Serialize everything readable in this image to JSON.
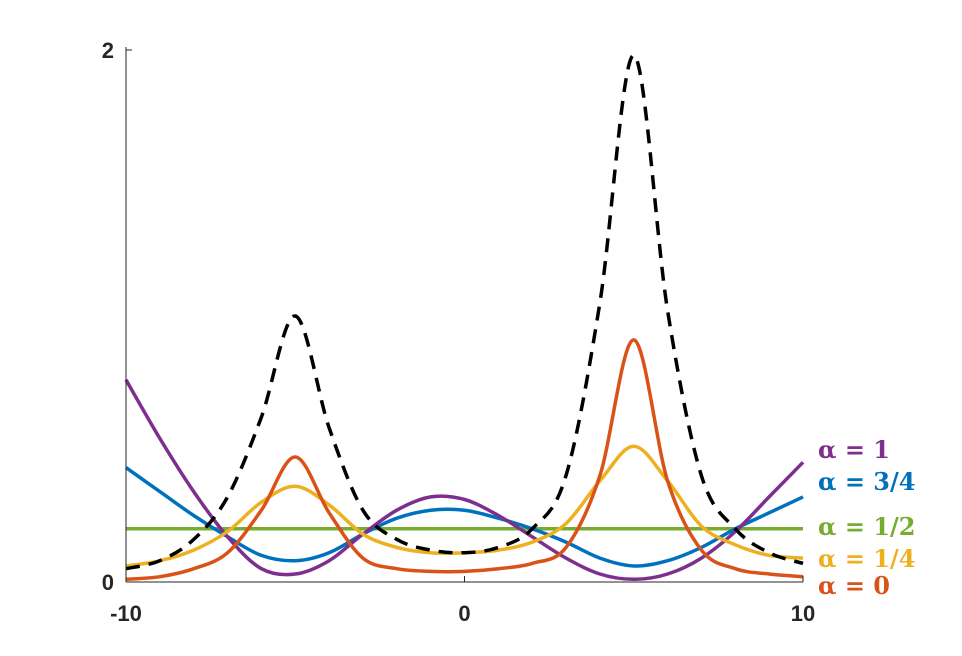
{
  "chart_data": {
    "type": "line",
    "title": "",
    "xlabel": "",
    "ylabel": "",
    "xlim": [
      -10,
      10
    ],
    "ylim": [
      0,
      2
    ],
    "grid": false,
    "legend": "right, inline labels at line ends",
    "x_ticks": [
      "-10",
      "0",
      "10"
    ],
    "y_ticks": [
      "0",
      "2"
    ],
    "x": [
      -10,
      -9,
      -8,
      -7,
      -6,
      -5,
      -4,
      -3,
      -2,
      -1,
      0,
      1,
      2,
      3,
      4,
      5,
      6,
      7,
      8,
      9,
      10
    ],
    "series": [
      {
        "key": "dashed",
        "name": "",
        "color": "#000000",
        "dashed": true,
        "values": [
          0.05,
          0.08,
          0.16,
          0.32,
          0.62,
          1.0,
          0.58,
          0.27,
          0.16,
          0.12,
          0.11,
          0.13,
          0.2,
          0.4,
          1.05,
          1.98,
          1.02,
          0.4,
          0.2,
          0.11,
          0.07
        ]
      },
      {
        "key": "alpha-1",
        "name": "α = 1",
        "color": "#7E2F8E",
        "dashed": false,
        "values": [
          0.76,
          0.54,
          0.34,
          0.17,
          0.05,
          0.03,
          0.08,
          0.18,
          0.27,
          0.32,
          0.31,
          0.25,
          0.17,
          0.09,
          0.03,
          0.01,
          0.03,
          0.09,
          0.19,
          0.32,
          0.45
        ]
      },
      {
        "key": "alpha-3-4",
        "name": "α = 3/4",
        "color": "#0072BD",
        "dashed": false,
        "values": [
          0.43,
          0.34,
          0.25,
          0.17,
          0.1,
          0.08,
          0.11,
          0.18,
          0.24,
          0.27,
          0.27,
          0.24,
          0.2,
          0.15,
          0.09,
          0.06,
          0.08,
          0.13,
          0.2,
          0.26,
          0.32
        ]
      },
      {
        "key": "alpha-1-2",
        "name": "α = 1/2",
        "color": "#77AC30",
        "dashed": false,
        "values": [
          0.2,
          0.2,
          0.2,
          0.2,
          0.2,
          0.2,
          0.2,
          0.2,
          0.2,
          0.2,
          0.2,
          0.2,
          0.2,
          0.2,
          0.2,
          0.2,
          0.2,
          0.2,
          0.2,
          0.2,
          0.2
        ]
      },
      {
        "key": "alpha-1-4",
        "name": "α = 1/4",
        "color": "#EDB120",
        "dashed": false,
        "values": [
          0.06,
          0.08,
          0.12,
          0.19,
          0.3,
          0.36,
          0.29,
          0.18,
          0.13,
          0.11,
          0.11,
          0.12,
          0.15,
          0.22,
          0.38,
          0.51,
          0.38,
          0.21,
          0.14,
          0.1,
          0.09
        ]
      },
      {
        "key": "alpha-0",
        "name": "α = 0",
        "color": "#D95319",
        "dashed": false,
        "values": [
          0.01,
          0.02,
          0.05,
          0.11,
          0.27,
          0.47,
          0.26,
          0.09,
          0.05,
          0.04,
          0.04,
          0.05,
          0.07,
          0.13,
          0.4,
          0.91,
          0.38,
          0.12,
          0.05,
          0.03,
          0.02
        ]
      }
    ]
  }
}
